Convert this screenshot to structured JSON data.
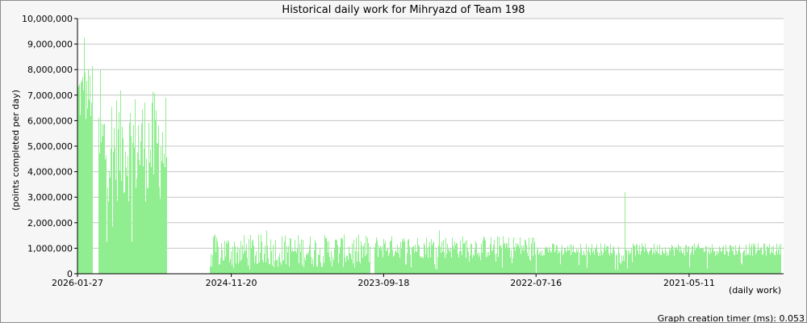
{
  "chart_data": {
    "type": "bar",
    "title": "Historical daily work for Mihryazd of Team 198",
    "xlabel": "(daily work)",
    "ylabel": "(points completed per day)",
    "ylim": [
      0,
      10000000
    ],
    "yticks": [
      "0",
      "1,000,000",
      "2,000,000",
      "3,000,000",
      "4,000,000",
      "5,000,000",
      "6,000,000",
      "7,000,000",
      "8,000,000",
      "9,000,000",
      "10,000,000"
    ],
    "xticks": [
      "2026-01-27",
      "2024-11-20",
      "2023-09-18",
      "2022-07-16",
      "2021-05-11"
    ],
    "grid": true,
    "bar_color": "#90ee90",
    "x_order": "newest to oldest",
    "segments": [
      {
        "from": "2026-01-27",
        "to": "2025-12-15",
        "typical": 7000000,
        "spread": 1200000,
        "peak": 9250000,
        "peak_at": 0.42
      },
      {
        "from": "2025-11-30",
        "to": "2025-05-20",
        "typical": 5000000,
        "spread": 2200000,
        "peak": 8000000,
        "peak_at": 0.02
      },
      {
        "from": "2025-01-20",
        "to": "2023-10-25",
        "typical": 900000,
        "spread": 650000,
        "peak": 1700000,
        "peak_at": 0.35
      },
      {
        "from": "2023-10-15",
        "to": "2022-07-16",
        "typical": 1050000,
        "spread": 450000,
        "peak": 1700000,
        "peak_at": 0.4
      },
      {
        "from": "2022-07-15",
        "to": "2020-08-25",
        "typical": 950000,
        "spread": 250000,
        "peak": 3200000,
        "peak_at": 0.36
      }
    ]
  },
  "footer": {
    "timer_label": "Graph creation timer (ms): 0.053"
  }
}
